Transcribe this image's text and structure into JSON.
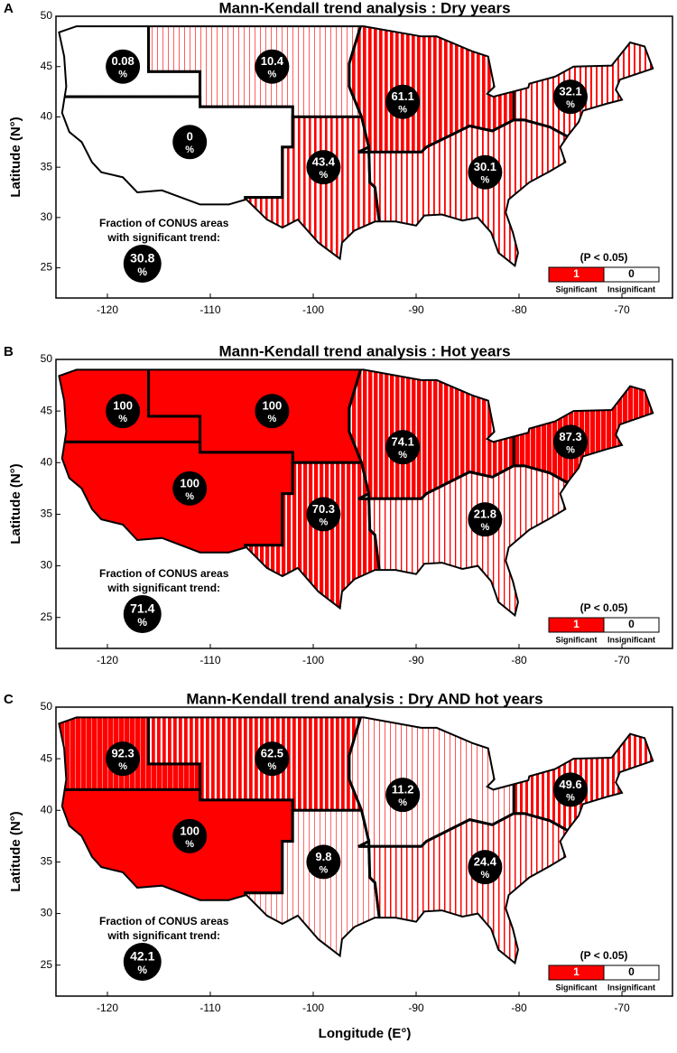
{
  "chart_data": [
    {
      "type": "map",
      "panel": "A",
      "title": "Mann-Kendall trend analysis : Dry years",
      "unit": "%",
      "values": [
        0.08,
        10.4,
        0,
        43.4,
        61.1,
        30.1,
        32.1
      ],
      "overall": 30.8,
      "fraction_label": [
        "Fraction of CONUS areas",
        "with significant trend:"
      ],
      "legend": {
        "title": "(P < 0.05)",
        "items": [
          {
            "value": 1,
            "label": "Significant",
            "color": "#ff0000"
          },
          {
            "value": 0,
            "label": "Insignificant",
            "color": "#ffffff"
          }
        ]
      },
      "ylabel": "Latitude (N°)",
      "xlim": [
        -125,
        -65
      ],
      "xticks": [
        -120,
        -110,
        -100,
        -90,
        -80,
        -70
      ],
      "ylim": [
        22,
        50
      ],
      "yticks": [
        25,
        30,
        35,
        40,
        45,
        50
      ]
    },
    {
      "type": "map",
      "panel": "B",
      "title": "Mann-Kendall trend analysis : Hot years",
      "unit": "%",
      "values": [
        100,
        100,
        100,
        70.3,
        74.1,
        21.8,
        87.3
      ],
      "overall": 71.4,
      "fraction_label": [
        "Fraction of CONUS areas",
        "with significant trend:"
      ],
      "legend": {
        "title": "(P < 0.05)",
        "items": [
          {
            "value": 1,
            "label": "Significant",
            "color": "#ff0000"
          },
          {
            "value": 0,
            "label": "Insignificant",
            "color": "#ffffff"
          }
        ]
      },
      "ylabel": "Latitude (N°)",
      "xlim": [
        -125,
        -65
      ],
      "xticks": [
        -120,
        -110,
        -100,
        -90,
        -80,
        -70
      ],
      "ylim": [
        22,
        50
      ],
      "yticks": [
        25,
        30,
        35,
        40,
        45,
        50
      ]
    },
    {
      "type": "map",
      "panel": "C",
      "title": "Mann-Kendall trend analysis : Dry AND hot years",
      "unit": "%",
      "values": [
        92.3,
        62.5,
        100,
        9.8,
        11.2,
        24.4,
        49.6
      ],
      "overall": 42.1,
      "fraction_label": [
        "Fraction of CONUS areas",
        "with significant trend:"
      ],
      "legend": {
        "title": "(P < 0.05)",
        "items": [
          {
            "value": 1,
            "label": "Significant",
            "color": "#ff0000"
          },
          {
            "value": 0,
            "label": "Insignificant",
            "color": "#ffffff"
          }
        ]
      },
      "ylabel": "Latitude (N°)",
      "xlabel": "Longitude (E°)",
      "xlim": [
        -125,
        -65
      ],
      "xticks": [
        -120,
        -110,
        -100,
        -90,
        -80,
        -70
      ],
      "ylim": [
        22,
        50
      ],
      "yticks": [
        25,
        30,
        35,
        40,
        45,
        50
      ]
    }
  ]
}
